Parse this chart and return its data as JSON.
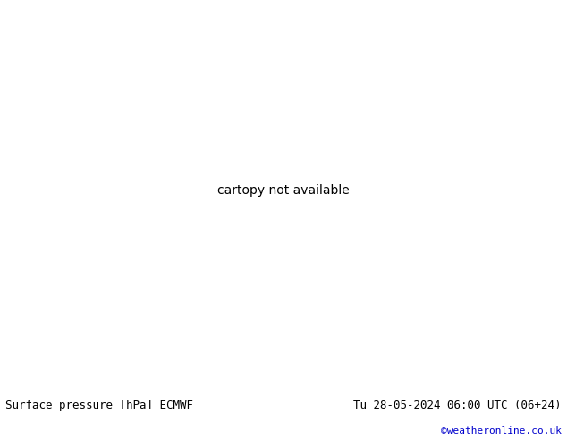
{
  "title_left": "Surface pressure [hPa] ECMWF",
  "title_right": "Tu 28-05-2024 06:00 UTC (06+24)",
  "watermark": "©weatheronline.co.uk",
  "watermark_color": "#0000cc",
  "bg_color": "#ffffff",
  "ocean_color": "#b0c8e8",
  "land_color": "#c8e8b0",
  "land_border_color": "#404040",
  "glacier_color": "#d8d8d8",
  "contour_black": "#000000",
  "contour_red": "#cc0000",
  "contour_blue": "#0000bb",
  "label_fontsize": 5.5,
  "title_fontsize": 9,
  "watermark_fontsize": 8,
  "contour_interval": 4,
  "p_min": 940,
  "p_max": 1048
}
